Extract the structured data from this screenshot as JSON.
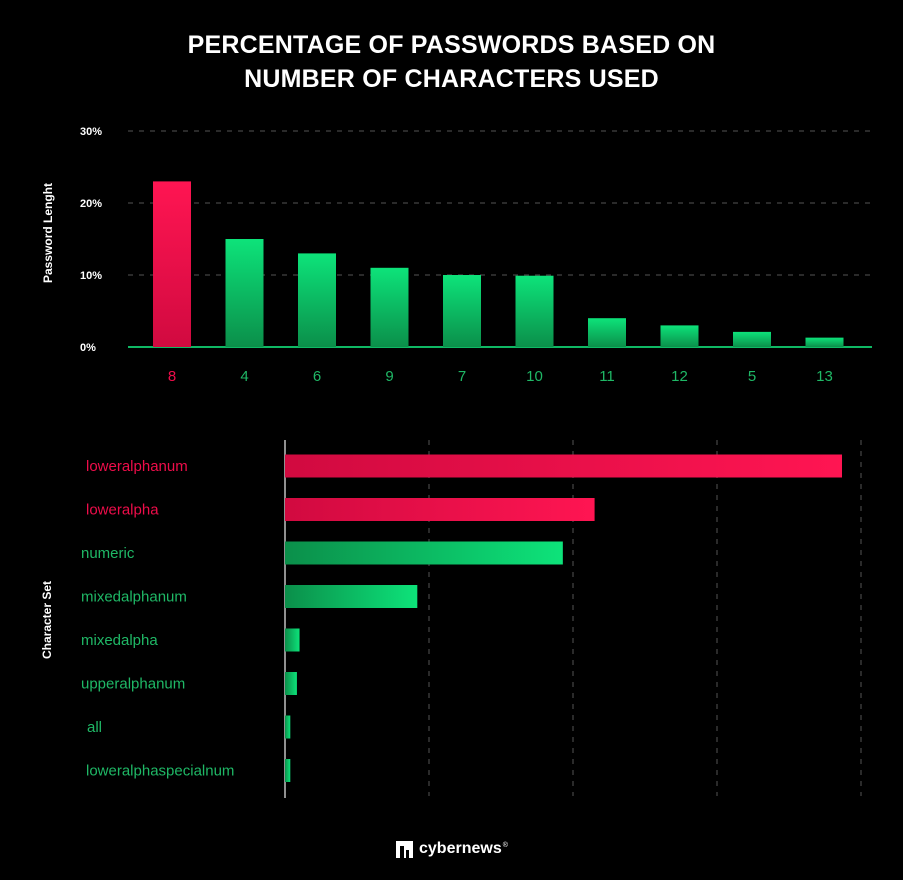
{
  "title_lines": [
    "PERCENTAGE OF PASSWORDS BASED ON",
    "NUMBER OF CHARACTERS USED"
  ],
  "brand": {
    "name": "cybernews",
    "mark": "®"
  },
  "colors": {
    "highlight": "#ee0d4a",
    "bar_light": "#0de37a",
    "bar_dark": "#0b8f4a",
    "tick_green": "#1fb866",
    "grid": "#555555"
  },
  "chart_data": [
    {
      "type": "bar",
      "ylabel": "Password Lenght",
      "categories": [
        "8",
        "4",
        "6",
        "9",
        "7",
        "10",
        "11",
        "12",
        "5",
        "13"
      ],
      "values": [
        23,
        15,
        13,
        11,
        10,
        9.9,
        4,
        3,
        2.1,
        1.3
      ],
      "yticks": [
        "0%",
        "10%",
        "20%",
        "30%"
      ],
      "ylim": [
        0,
        30
      ],
      "highlight": [
        "8"
      ],
      "grid": true
    },
    {
      "type": "bar",
      "orientation": "horizontal",
      "ylabel": "Character Set",
      "categories": [
        "loweralphanum",
        "loweralpha",
        "numeric",
        "mixedalphanum",
        "mixedalpha",
        "upperalphanum",
        "all",
        "loweralphaspecialnum"
      ],
      "values": [
        42.1,
        23.4,
        21.0,
        10.0,
        1.1,
        0.9,
        0.4,
        0.4
      ],
      "xlim": [
        0,
        43.5
      ],
      "highlight": [
        "loweralphanum",
        "loweralpha"
      ],
      "grid": true
    }
  ]
}
